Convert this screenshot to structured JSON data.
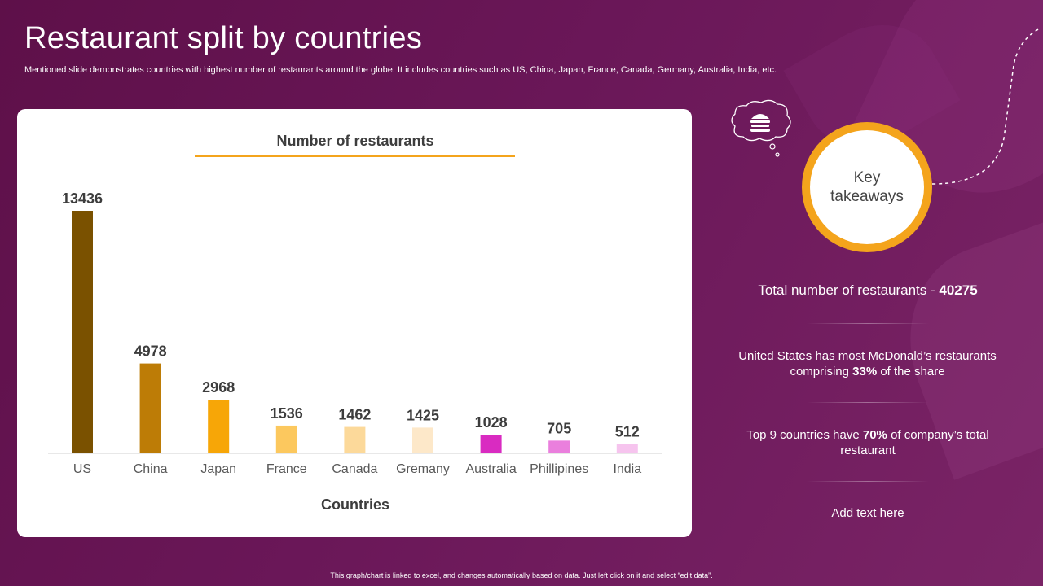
{
  "slide": {
    "title": "Restaurant split by countries",
    "subtitle": "Mentioned slide demonstrates countries with highest number of restaurants around the globe. It includes countries such as US, China, Japan, France, Canada, Germany, Australia, India, etc.",
    "footer": "This graph/chart is linked to excel, and changes automatically based on data. Just left click on it and select “edit data”."
  },
  "colors": {
    "background": "#6a1758",
    "accent": "#f4a41c",
    "bar_colors": [
      "#7a5100",
      "#bd7c06",
      "#f7a607",
      "#fcc85e",
      "#fcd99a",
      "#fde8c9",
      "#d92bc1",
      "#ea7fdd",
      "#f6c4ee"
    ]
  },
  "chart_data": {
    "type": "bar",
    "title": "Number of restaurants",
    "xlabel": "Countries",
    "ylabel": "",
    "categories": [
      "US",
      "China",
      "Japan",
      "France",
      "Canada",
      "Gremany",
      "Australia",
      "Phillipines",
      "India"
    ],
    "values": [
      13436,
      4978,
      2968,
      1536,
      1462,
      1425,
      1028,
      705,
      512
    ],
    "ylim": [
      0,
      13436
    ],
    "grid": false,
    "data_labels": true
  },
  "takeaways": {
    "heading_line1": "Key",
    "heading_line2": "takeaways",
    "items": [
      {
        "pre": "Total number of restaurants - ",
        "bold": "40275",
        "post": ""
      },
      {
        "pre": "United States has most McDonald’s restaurants comprising ",
        "bold": "33%",
        "post": " of the share"
      },
      {
        "pre": "Top 9 countries have ",
        "bold": "70%",
        "post": " of company’s total restaurant"
      },
      {
        "pre": "Add text here",
        "bold": "",
        "post": ""
      }
    ]
  },
  "icons": {
    "thought_bubble": "burger-thought-bubble-icon"
  }
}
